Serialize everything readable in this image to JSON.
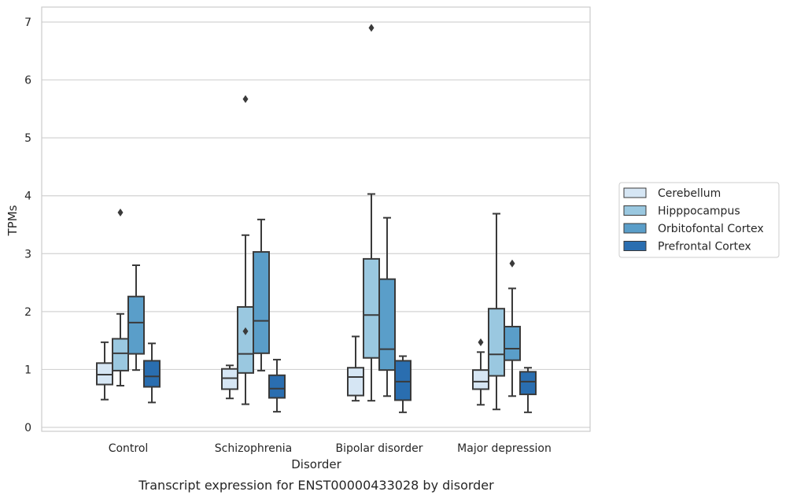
{
  "chart_data": {
    "type": "box",
    "caption": "Transcript expression for ENST00000433028 by disorder",
    "xlabel": "Disorder",
    "ylabel": "TPMs",
    "ylim": [
      -0.05,
      7.25
    ],
    "yticks": [
      0,
      1,
      2,
      3,
      4,
      5,
      6,
      7
    ],
    "grid": true,
    "legend_position": "right",
    "categories": [
      "Control",
      "Schizophrenia",
      "Bipolar disorder",
      "Major depression"
    ],
    "series": [
      {
        "name": "Cerebellum",
        "color": "#d6e6f4",
        "boxes": [
          {
            "whislo": 0.48,
            "q1": 0.74,
            "med": 0.91,
            "q3": 1.11,
            "whishi": 1.47,
            "fliers": []
          },
          {
            "whislo": 0.5,
            "q1": 0.66,
            "med": 0.85,
            "q3": 1.01,
            "whishi": 1.07,
            "fliers": []
          },
          {
            "whislo": 0.46,
            "q1": 0.55,
            "med": 0.87,
            "q3": 1.03,
            "whishi": 1.57,
            "fliers": []
          },
          {
            "whislo": 0.39,
            "q1": 0.66,
            "med": 0.79,
            "q3": 0.99,
            "whishi": 1.3,
            "fliers": [
              1.47
            ]
          }
        ]
      },
      {
        "name": "Hipppocampus",
        "color": "#9ac8e0",
        "boxes": [
          {
            "whislo": 0.72,
            "q1": 0.98,
            "med": 1.28,
            "q3": 1.53,
            "whishi": 1.96,
            "fliers": [
              3.71
            ]
          },
          {
            "whislo": 0.4,
            "q1": 0.94,
            "med": 1.27,
            "q3": 2.08,
            "whishi": 3.32,
            "fliers": [
              1.66,
              5.67
            ]
          },
          {
            "whislo": 0.46,
            "q1": 1.2,
            "med": 1.94,
            "q3": 2.91,
            "whishi": 4.03,
            "fliers": [
              6.9
            ]
          },
          {
            "whislo": 0.31,
            "q1": 0.89,
            "med": 1.26,
            "q3": 2.05,
            "whishi": 3.69,
            "fliers": []
          }
        ]
      },
      {
        "name": "Orbitofontal Cortex",
        "color": "#5a9ec9",
        "boxes": [
          {
            "whislo": 0.99,
            "q1": 1.27,
            "med": 1.81,
            "q3": 2.26,
            "whishi": 2.8,
            "fliers": []
          },
          {
            "whislo": 0.98,
            "q1": 1.28,
            "med": 1.84,
            "q3": 3.03,
            "whishi": 3.59,
            "fliers": []
          },
          {
            "whislo": 0.54,
            "q1": 0.99,
            "med": 1.35,
            "q3": 2.56,
            "whishi": 3.62,
            "fliers": []
          },
          {
            "whislo": 0.54,
            "q1": 1.16,
            "med": 1.36,
            "q3": 1.74,
            "whishi": 2.4,
            "fliers": [
              2.83
            ]
          }
        ]
      },
      {
        "name": "Prefrontal Cortex",
        "color": "#2a6eb0",
        "boxes": [
          {
            "whislo": 0.43,
            "q1": 0.7,
            "med": 0.88,
            "q3": 1.15,
            "whishi": 1.45,
            "fliers": []
          },
          {
            "whislo": 0.27,
            "q1": 0.51,
            "med": 0.67,
            "q3": 0.9,
            "whishi": 1.17,
            "fliers": []
          },
          {
            "whislo": 0.26,
            "q1": 0.47,
            "med": 0.79,
            "q3": 1.15,
            "whishi": 1.23,
            "fliers": []
          },
          {
            "whislo": 0.26,
            "q1": 0.57,
            "med": 0.79,
            "q3": 0.96,
            "whishi": 1.03,
            "fliers": []
          }
        ]
      }
    ]
  }
}
